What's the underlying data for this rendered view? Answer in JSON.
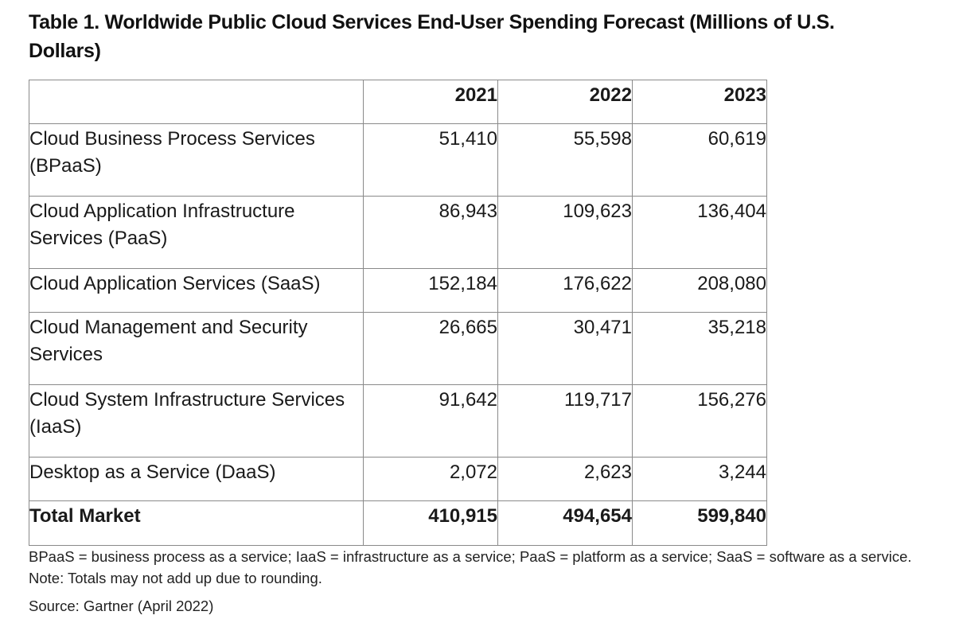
{
  "title": "Table 1. Worldwide Public Cloud Services End-User Spending Forecast (Millions of U.S. Dollars)",
  "table": {
    "header": {
      "label": "",
      "years": [
        "2021",
        "2022",
        "2023"
      ]
    },
    "rows": [
      {
        "label": "Cloud Business Process Services (BPaaS)",
        "values": [
          "51,410",
          "55,598",
          "60,619"
        ]
      },
      {
        "label": "Cloud Application Infrastructure Services (PaaS)",
        "values": [
          "86,943",
          "109,623",
          "136,404"
        ]
      },
      {
        "label": "Cloud Application Services (SaaS)",
        "values": [
          "152,184",
          "176,622",
          "208,080"
        ]
      },
      {
        "label": "Cloud Management and Security Services",
        "values": [
          "26,665",
          "30,471",
          "35,218"
        ]
      },
      {
        "label": "Cloud System Infrastructure Services (IaaS)",
        "values": [
          "91,642",
          "119,717",
          "156,276"
        ]
      },
      {
        "label": "Desktop as a Service (DaaS)",
        "values": [
          "2,072",
          "2,623",
          "3,244"
        ]
      }
    ],
    "total": {
      "label": "Total Market",
      "values": [
        "410,915",
        "494,654",
        "599,840"
      ]
    }
  },
  "footnote": "BPaaS = business process as a service; IaaS = infrastructure as a service; PaaS = platform as a service; SaaS = software as a service. Note: Totals may not add up due to rounding.",
  "source": "Source: Gartner (April 2022)"
}
